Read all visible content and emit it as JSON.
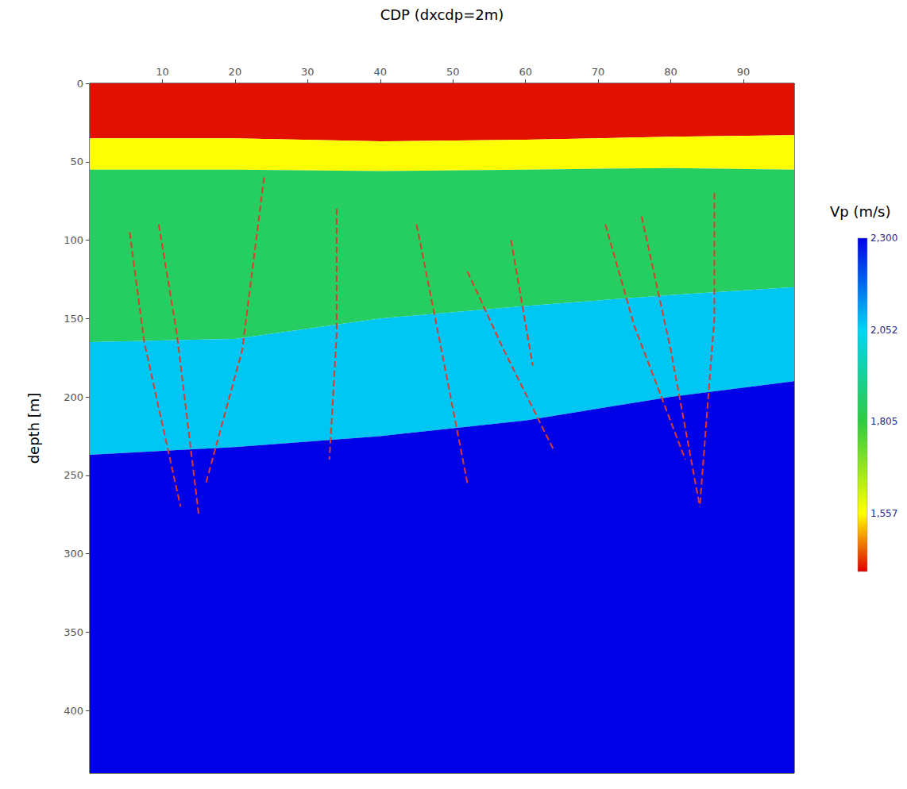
{
  "chart_data": {
    "type": "velocity_section",
    "x_label": "CDP (dxcdp=2m)",
    "y_label": "depth [m]",
    "xlim": [
      0,
      97
    ],
    "xticks": [
      10,
      20,
      30,
      40,
      50,
      60,
      70,
      80,
      90
    ],
    "ylim": [
      0,
      440
    ],
    "yticks": [
      0,
      50,
      100,
      150,
      200,
      250,
      300,
      350,
      400
    ],
    "colorbar": {
      "label": "Vp (m/s)",
      "range": [
        1400,
        2300
      ],
      "ticks": [
        1557,
        1805,
        2052,
        2300
      ]
    },
    "layers": {
      "x": [
        0,
        20,
        40,
        60,
        80,
        97
      ],
      "interfaces": [
        [
          35,
          35,
          37,
          36,
          34,
          33
        ],
        [
          55,
          55,
          56,
          55,
          54,
          55
        ],
        [
          165,
          163,
          150,
          142,
          135,
          130
        ],
        [
          237,
          232,
          225,
          215,
          200,
          190
        ]
      ],
      "velocities": [
        1410,
        1560,
        1850,
        2070,
        2300
      ]
    },
    "faults": {
      "color": "#e03a2a",
      "line_style": "dashed",
      "lines": [
        {
          "x": [
            5.5,
            7.5,
            12.5
          ],
          "y": [
            95,
            165,
            270
          ]
        },
        {
          "x": [
            9.5,
            12,
            15
          ],
          "y": [
            90,
            160,
            275
          ]
        },
        {
          "x": [
            24,
            21,
            16
          ],
          "y": [
            60,
            170,
            255
          ]
        },
        {
          "x": [
            34,
            34,
            33
          ],
          "y": [
            80,
            160,
            240
          ]
        },
        {
          "x": [
            45,
            48,
            52
          ],
          "y": [
            90,
            160,
            255
          ]
        },
        {
          "x": [
            52,
            57,
            64
          ],
          "y": [
            120,
            170,
            235
          ]
        },
        {
          "x": [
            58,
            61
          ],
          "y": [
            100,
            180
          ]
        },
        {
          "x": [
            71,
            75,
            82
          ],
          "y": [
            90,
            155,
            240
          ]
        },
        {
          "x": [
            76,
            80,
            84
          ],
          "y": [
            85,
            170,
            270
          ]
        },
        {
          "x": [
            86,
            86,
            84
          ],
          "y": [
            70,
            150,
            270
          ]
        }
      ]
    }
  }
}
